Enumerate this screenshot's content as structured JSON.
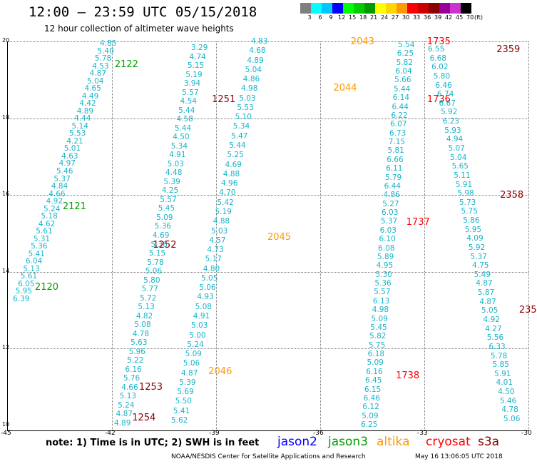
{
  "header": {
    "title": "12:00 – 23:59 UTC 05/15/2018",
    "subtitle": "12 hour collection of altimeter wave heights"
  },
  "legend": {
    "labels": [
      "3",
      "6",
      "9",
      "12",
      "15",
      "18",
      "21",
      "24",
      "27",
      "30",
      "33",
      "36",
      "39",
      "42",
      "45",
      "70"
    ],
    "unit": "(ft)",
    "colors": [
      "#7f7f7f",
      "#00ffff",
      "#00c8ff",
      "#0000ff",
      "#00ff00",
      "#00cc00",
      "#009900",
      "#ffff00",
      "#ffd700",
      "#ff9900",
      "#ff0000",
      "#cc0000",
      "#8b0000",
      "#990099",
      "#cc33cc",
      "#000000"
    ]
  },
  "axes": {
    "lat_labels": [
      "20",
      "18",
      "16",
      "14",
      "12",
      "10"
    ],
    "lon_labels": [
      "-45",
      "-42",
      "-39",
      "-36",
      "-33",
      "-30"
    ]
  },
  "tracks": {
    "a_vals": [
      "4.85",
      "5.40",
      "5.78",
      "4.53",
      "4.87",
      "5.04",
      "4.65",
      "4.49",
      "4.42",
      "4.89",
      "4.44",
      "5.14",
      "5.53",
      "4.21",
      "5.01",
      "4.63",
      "4.97",
      "5.46",
      "5.37",
      "4.84",
      "4.66",
      "4.92",
      "5.24",
      "5.18",
      "4.62",
      "5.61",
      "5.31",
      "5.36",
      "5.41",
      "6.04",
      "5.13",
      "5.61",
      "6.05",
      "5.95",
      "6.39"
    ],
    "b_vals": [
      "3.29",
      "4.74",
      "5.15",
      "5.19",
      "3.94",
      "5.57",
      "4.54",
      "5.44",
      "4.58",
      "5.44",
      "4.50",
      "5.34",
      "4.91",
      "5.03",
      "4.48",
      "5.39",
      "4.25",
      "5.57",
      "5.45",
      "5.09",
      "5.36",
      "4.69",
      "5.36",
      "5.15",
      "5.78",
      "5.06",
      "5.80",
      "5.77",
      "5.72",
      "5.13",
      "4.82",
      "5.08",
      "4.78",
      "5.63",
      "5.96",
      "5.22",
      "6.16",
      "5.76",
      "4.66",
      "5.13",
      "5.24",
      "4.87",
      "4.89"
    ],
    "c_vals": [
      "4.83",
      "4.68",
      "4.89",
      "5.04",
      "4.86",
      "4.98",
      "5.03",
      "5.53",
      "5.10",
      "5.34",
      "5.47",
      "5.44",
      "5.25",
      "4.69",
      "4.88",
      "4.96",
      "4.70",
      "5.42",
      "5.19",
      "4.88",
      "5.03",
      "4.57",
      "4.73",
      "5.17",
      "4.80",
      "5.05",
      "5.06",
      "4.93",
      "5.08",
      "4.91",
      "5.03",
      "5.00",
      "5.24",
      "5.09",
      "5.06",
      "4.87",
      "5.39",
      "5.69",
      "5.50",
      "5.41",
      "5.62"
    ],
    "d_vals": [
      "5.54",
      "6.25",
      "5.82",
      "6.04",
      "5.66",
      "5.44",
      "6.14",
      "6.44",
      "6.22",
      "6.07",
      "6.73",
      "7.15",
      "5.81",
      "6.66",
      "6.11",
      "5.79",
      "6.44",
      "4.86",
      "5.27",
      "6.03",
      "5.37",
      "6.03",
      "6.10",
      "6.08",
      "5.89",
      "4.95",
      "5.30",
      "5.36",
      "5.57",
      "6.13",
      "4.98",
      "5.09",
      "5.45",
      "5.82",
      "5.75",
      "6.18",
      "5.09",
      "6.16",
      "6.45",
      "6.15",
      "6.46",
      "6.12",
      "5.09",
      "6.25"
    ],
    "e_vals": [
      "6.55",
      "6.68",
      "6.02",
      "5.80",
      "6.46",
      "6.74",
      "6.67",
      "5.92",
      "6.23",
      "5.93",
      "4.94",
      "5.07",
      "5.04",
      "5.65",
      "5.11",
      "5.91",
      "5.98",
      "5.73",
      "5.75",
      "5.86",
      "5.95",
      "4.09",
      "5.92",
      "5.37",
      "4.75",
      "5.49",
      "4.87",
      "5.87",
      "4.87",
      "5.05",
      "4.92",
      "4.27",
      "5.56",
      "6.33",
      "5.78",
      "5.85",
      "5.91",
      "4.01",
      "4.50",
      "5.46",
      "4.78",
      "5.06"
    ]
  },
  "time_labels": {
    "jason3": [
      {
        "t": "2122",
        "col": "#00a000",
        "lon": -41.9,
        "lat": 19.4
      },
      {
        "t": "2121",
        "col": "#00a000",
        "lon": -43.4,
        "lat": 15.7
      },
      {
        "t": "2120",
        "col": "#00a000",
        "lon": -44.2,
        "lat": 13.6
      }
    ],
    "altika": [
      {
        "t": "2043",
        "col": "#ff9900",
        "lon": -35.1,
        "lat": 20.0
      },
      {
        "t": "2044",
        "col": "#ff9900",
        "lon": -35.6,
        "lat": 18.8
      },
      {
        "t": "2045",
        "col": "#ff9900",
        "lon": -37.5,
        "lat": 14.9
      },
      {
        "t": "2046",
        "col": "#ff9900",
        "lon": -39.2,
        "lat": 11.4
      }
    ],
    "s3a": [
      {
        "t": "1251",
        "col": "#8b0000",
        "lon": -39.1,
        "lat": 18.5
      },
      {
        "t": "1252",
        "col": "#8b0000",
        "lon": -40.8,
        "lat": 14.7
      },
      {
        "t": "1253",
        "col": "#8b0000",
        "lon": -41.2,
        "lat": 11.0
      },
      {
        "t": "1254",
        "col": "#8b0000",
        "lon": -41.4,
        "lat": 10.2
      },
      {
        "t": "2359",
        "col": "#8b0000",
        "lon": -30.9,
        "lat": 19.8
      },
      {
        "t": "2358",
        "col": "#8b0000",
        "lon": -30.8,
        "lat": 16.0
      },
      {
        "t": "235",
        "col": "#8b0000",
        "lon": -30.25,
        "lat": 13.0
      }
    ],
    "cryosat": [
      {
        "t": "1735",
        "col": "#ff0000",
        "lon": -32.9,
        "lat": 20.0
      },
      {
        "t": "1736",
        "col": "#ff0000",
        "lon": -32.9,
        "lat": 18.5
      },
      {
        "t": "1737",
        "col": "#ff0000",
        "lon": -33.5,
        "lat": 15.3
      },
      {
        "t": "1738",
        "col": "#ff0000",
        "lon": -33.8,
        "lat": 11.3
      }
    ]
  },
  "note": "note:  1) Time is in UTC;  2) SWH is in feet",
  "satellites": [
    {
      "name": "jason2",
      "color": "#0000ff"
    },
    {
      "name": "jason3",
      "color": "#00a000"
    },
    {
      "name": "altika",
      "color": "#ff9900"
    },
    {
      "name": "cryosat",
      "color": "#ff0000"
    },
    {
      "name": "s3a",
      "color": "#8b0000"
    }
  ],
  "footer": {
    "left": "NOAA/NESDIS Center for Satellite Applications and Research",
    "right": "May 16 13:06:05 UTC 2018"
  }
}
